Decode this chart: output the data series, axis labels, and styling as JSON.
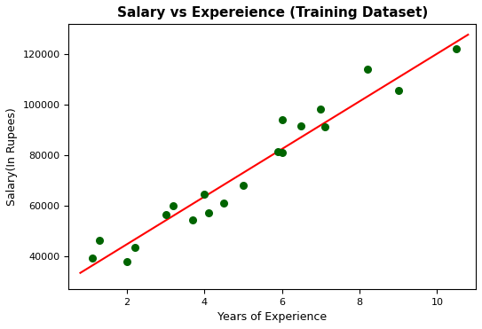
{
  "title": "Salary vs Expereience (Training Dataset)",
  "xlabel": "Years of Experience",
  "ylabel": "Salary(In Rupees)",
  "scatter_x": [
    1.1,
    1.3,
    2.0,
    2.2,
    3.0,
    3.2,
    3.7,
    4.0,
    4.1,
    4.5,
    5.0,
    5.9,
    6.0,
    6.0,
    6.5,
    7.0,
    7.1,
    8.2,
    9.0,
    10.5
  ],
  "scatter_y": [
    39344,
    46206,
    37732,
    43526,
    56642,
    60151,
    54446,
    64446,
    57190,
    61112,
    67939,
    81364,
    93940,
    81212,
    91739,
    98274,
    91391,
    114120,
    105582,
    122392
  ],
  "scatter_color": "#006400",
  "scatter_size": 30,
  "line_color": "#ff0000",
  "line_x": [
    0.8,
    10.8
  ],
  "line_slope": 9449.96,
  "line_intercept": 25792.2,
  "xlim": [
    0.5,
    11.0
  ],
  "ylim": [
    27000,
    132000
  ],
  "title_fontsize": 11,
  "label_fontsize": 9,
  "tick_fontsize": 8,
  "xticks": [
    2,
    4,
    6,
    8,
    10
  ],
  "yticks": [
    40000,
    60000,
    80000,
    100000,
    120000
  ]
}
